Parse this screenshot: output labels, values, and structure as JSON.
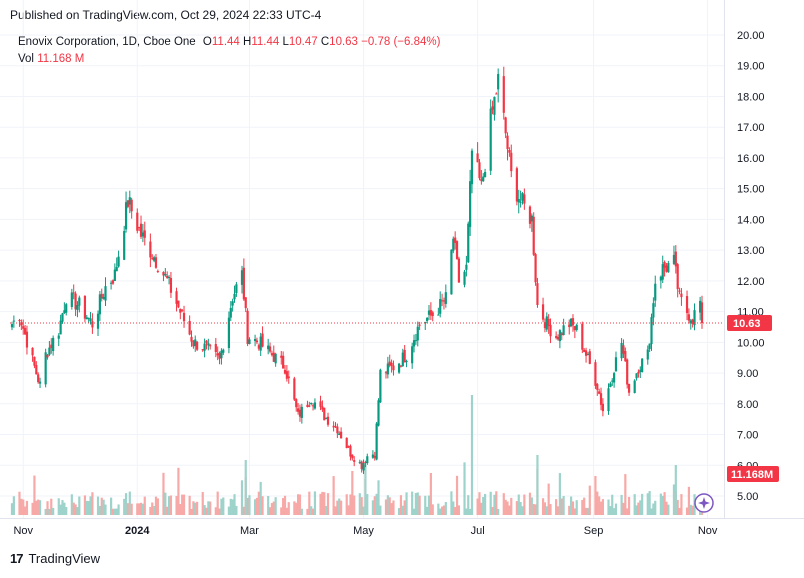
{
  "header": {
    "published": "Published on TradingView.com, Oct 29, 2024 22:33 UTC-4"
  },
  "legend": {
    "title": "Enovix Corporation, 1D, Cboe One",
    "o_label": "O",
    "o_value": "11.44",
    "h_label": "H",
    "h_value": "11.44",
    "l_label": "L",
    "l_value": "10.47",
    "c_label": "C",
    "c_value": "10.63",
    "change": "−0.78 (−6.84%)",
    "vol_label": "Vol",
    "vol_value": "11.168 M"
  },
  "footer": {
    "brand": "TradingView",
    "logo_text": "17"
  },
  "colors": {
    "up": "#089981",
    "down": "#f23645",
    "up_vol": "#9ed3cb",
    "down_vol": "#f7a9a7",
    "grid": "#f0f3fa",
    "price_line": "#f23645"
  },
  "chart_data": {
    "type": "candlestick",
    "ylim": [
      4.2,
      20.5
    ],
    "y_ticks": [
      "20.00",
      "19.00",
      "18.00",
      "17.00",
      "16.00",
      "15.00",
      "14.00",
      "13.00",
      "12.00",
      "11.00",
      "10.00",
      "9.00",
      "8.00",
      "7.00",
      "6.00",
      "5.00"
    ],
    "x_ticks": [
      "Nov",
      "2024",
      "Mar",
      "May",
      "Jul",
      "Sep",
      "Nov"
    ],
    "last_price": "10.63",
    "last_volume": "11.168M",
    "anchors": [
      [
        "2023-10-26",
        10.6
      ],
      [
        "2023-10-30",
        10.9
      ],
      [
        "2023-11-06",
        9.4
      ],
      [
        "2023-11-10",
        8.6
      ],
      [
        "2023-11-13",
        9.6
      ],
      [
        "2023-11-20",
        10.4
      ],
      [
        "2023-11-24",
        11.5
      ],
      [
        "2023-12-01",
        11.2
      ],
      [
        "2023-12-08",
        10.6
      ],
      [
        "2023-12-15",
        11.8
      ],
      [
        "2023-12-20",
        12.2
      ],
      [
        "2023-12-27",
        14.6
      ],
      [
        "2024-01-03",
        13.5
      ],
      [
        "2024-01-10",
        12.8
      ],
      [
        "2024-01-17",
        12.0
      ],
      [
        "2024-01-24",
        11.0
      ],
      [
        "2024-01-31",
        10.0
      ],
      [
        "2024-02-07",
        9.8
      ],
      [
        "2024-02-14",
        9.4
      ],
      [
        "2024-02-21",
        11.5
      ],
      [
        "2024-02-26",
        12.2
      ],
      [
        "2024-02-29",
        10.2
      ],
      [
        "2024-03-06",
        10.0
      ],
      [
        "2024-03-13",
        9.6
      ],
      [
        "2024-03-20",
        9.2
      ],
      [
        "2024-03-27",
        7.6
      ],
      [
        "2024-04-03",
        8.2
      ],
      [
        "2024-04-10",
        7.6
      ],
      [
        "2024-04-17",
        7.2
      ],
      [
        "2024-04-24",
        6.4
      ],
      [
        "2024-04-30",
        6.0
      ],
      [
        "2024-05-03",
        6.3
      ],
      [
        "2024-05-07",
        6.4
      ],
      [
        "2024-05-10",
        9.0
      ],
      [
        "2024-05-17",
        9.2
      ],
      [
        "2024-05-24",
        9.6
      ],
      [
        "2024-05-31",
        10.6
      ],
      [
        "2024-06-07",
        10.9
      ],
      [
        "2024-06-14",
        11.4
      ],
      [
        "2024-06-18",
        13.4
      ],
      [
        "2024-06-21",
        12.0
      ],
      [
        "2024-06-25",
        12.4
      ],
      [
        "2024-06-28",
        16.2
      ],
      [
        "2024-07-03",
        15.0
      ],
      [
        "2024-07-08",
        17.2
      ],
      [
        "2024-07-12",
        18.5
      ],
      [
        "2024-07-16",
        16.8
      ],
      [
        "2024-07-19",
        15.4
      ],
      [
        "2024-07-24",
        14.6
      ],
      [
        "2024-07-30",
        14.0
      ],
      [
        "2024-08-02",
        11.2
      ],
      [
        "2024-08-07",
        10.6
      ],
      [
        "2024-08-12",
        10.2
      ],
      [
        "2024-08-19",
        10.6
      ],
      [
        "2024-08-23",
        10.4
      ],
      [
        "2024-08-28",
        9.6
      ],
      [
        "2024-09-03",
        8.6
      ],
      [
        "2024-09-06",
        7.8
      ],
      [
        "2024-09-12",
        9.2
      ],
      [
        "2024-09-16",
        10.0
      ],
      [
        "2024-09-20",
        8.4
      ],
      [
        "2024-09-25",
        9.2
      ],
      [
        "2024-09-30",
        9.6
      ],
      [
        "2024-10-04",
        12.0
      ],
      [
        "2024-10-08",
        12.4
      ],
      [
        "2024-10-14",
        12.6
      ],
      [
        "2024-10-17",
        11.4
      ],
      [
        "2024-10-21",
        11.0
      ],
      [
        "2024-10-24",
        10.8
      ],
      [
        "2024-10-28",
        11.3
      ],
      [
        "2024-10-29",
        10.63
      ]
    ]
  }
}
